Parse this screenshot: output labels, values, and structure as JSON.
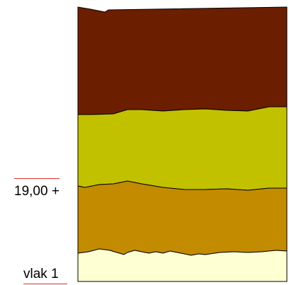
{
  "profile": {
    "elevation_label": "19,00 +",
    "section_label": "vlak 1",
    "marker_color": "#e0302e",
    "layers": [
      {
        "name": "top-layer",
        "color": "#6b1f00"
      },
      {
        "name": "second-layer",
        "color": "#c2c100"
      },
      {
        "name": "third-layer",
        "color": "#c28b00"
      },
      {
        "name": "bottom-layer",
        "color": "#ffffd4"
      }
    ]
  }
}
